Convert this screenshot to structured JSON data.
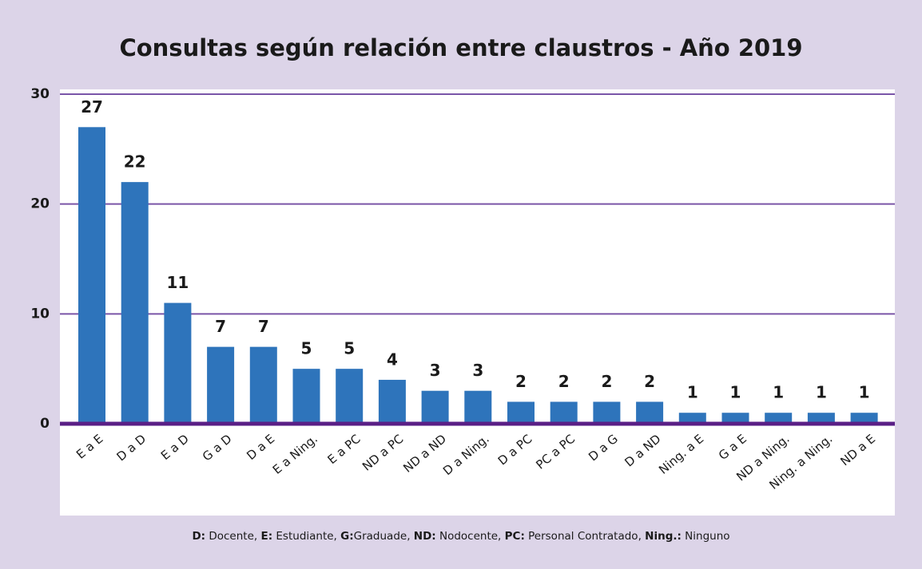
{
  "chart_data": {
    "type": "bar",
    "title": "Consultas según relación entre claustros  - Año 2019",
    "categories": [
      "E a E",
      "D a D",
      "E a D",
      "G a D",
      "D a E",
      "E a Ning.",
      "E a PC",
      "ND a PC",
      "ND a ND",
      "D a Ning.",
      "D a PC",
      "PC a PC",
      "D a G",
      "D a ND",
      "Ning. a E",
      "G a E",
      "ND a Ning.",
      "Ning. a Ning.",
      "ND a E"
    ],
    "values": [
      27,
      22,
      11,
      7,
      7,
      5,
      5,
      4,
      3,
      3,
      2,
      2,
      2,
      2,
      1,
      1,
      1,
      1,
      1
    ],
    "color": "#2e74bb",
    "ylim": [
      0,
      30
    ],
    "yticks": [
      0,
      10,
      20,
      30
    ],
    "grid": true,
    "footnote": [
      {
        "key": "D:",
        "text": " Docente, "
      },
      {
        "key": "E:",
        "text": " Estudiante, "
      },
      {
        "key": "G:",
        "text": "Graduade, "
      },
      {
        "key": "ND:",
        "text": " Nodocente, "
      },
      {
        "key": "PC:",
        "text": " Personal Contratado, "
      },
      {
        "key": "Ning.:",
        "text": " Ninguno"
      }
    ]
  }
}
